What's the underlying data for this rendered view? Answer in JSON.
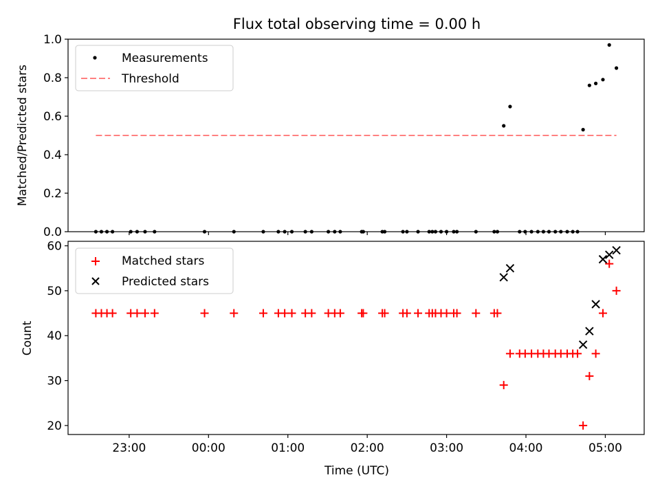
{
  "chart_data": [
    {
      "type": "scatter",
      "title": "Flux total observing time = 0.00 h",
      "xlabel": "",
      "ylabel": "Matched/Predicted stars",
      "ylim": [
        0,
        1.0
      ],
      "yticks": [
        0.0,
        0.2,
        0.4,
        0.6,
        0.8,
        1.0
      ],
      "ytick_labels": [
        "0.0",
        "0.2",
        "0.4",
        "0.6",
        "0.8",
        "1.0"
      ],
      "xlim_hours": [
        -1.77,
        5.49
      ],
      "legend": {
        "placement": "upper-left",
        "entries": [
          "Measurements",
          "Threshold"
        ]
      },
      "series": [
        {
          "name": "Measurements",
          "marker": "dot",
          "color": "#000000",
          "x_hours": [
            -1.42,
            -1.35,
            -1.28,
            -1.21,
            -0.98,
            -0.9,
            -0.8,
            -0.68,
            -0.05,
            0.32,
            0.69,
            0.88,
            0.96,
            1.05,
            1.22,
            1.3,
            1.51,
            1.59,
            1.66,
            1.93,
            1.95,
            2.19,
            2.22,
            2.45,
            2.5,
            2.64,
            2.78,
            2.82,
            2.86,
            2.93,
            3.0,
            3.09,
            3.13,
            3.37,
            3.6,
            3.64,
            3.72,
            3.8,
            3.92,
            3.99,
            4.07,
            4.15,
            4.22,
            4.29,
            4.37,
            4.44,
            4.52,
            4.59,
            4.65,
            4.72,
            4.8,
            4.88,
            4.97,
            5.05,
            5.14
          ],
          "y": [
            0,
            0,
            0,
            0,
            0,
            0,
            0,
            0,
            0,
            0,
            0,
            0,
            0,
            0,
            0,
            0,
            0,
            0,
            0,
            0,
            0,
            0,
            0,
            0,
            0,
            0,
            0,
            0,
            0,
            0,
            0,
            0,
            0,
            0,
            0,
            0,
            0.55,
            0.65,
            0,
            0,
            0,
            0,
            0,
            0,
            0,
            0,
            0,
            0,
            0,
            0.53,
            0.76,
            0.77,
            0.79,
            0.97,
            0.85
          ]
        },
        {
          "name": "Threshold",
          "style": "dashed",
          "color": "#ff8080",
          "x_hours": [
            -1.42,
            5.14
          ],
          "y": [
            0.5,
            0.5
          ]
        }
      ]
    },
    {
      "type": "scatter",
      "title": "",
      "xlabel": "Time (UTC)",
      "ylabel": "Count",
      "ylim": [
        18,
        61
      ],
      "yticks": [
        20,
        30,
        40,
        50,
        60
      ],
      "ytick_labels": [
        "20",
        "30",
        "40",
        "50",
        "60"
      ],
      "xlim_hours": [
        -1.77,
        5.49
      ],
      "xticks_hours": [
        -1,
        0,
        1,
        2,
        3,
        4,
        5
      ],
      "xtick_labels": [
        "23:00",
        "00:00",
        "01:00",
        "02:00",
        "03:00",
        "04:00",
        "05:00"
      ],
      "legend": {
        "placement": "upper-left",
        "entries": [
          "Matched stars",
          "Predicted stars"
        ]
      },
      "series": [
        {
          "name": "Matched stars",
          "marker": "plus",
          "color": "#ff0000",
          "x_hours": [
            -1.42,
            -1.35,
            -1.28,
            -1.21,
            -0.98,
            -0.9,
            -0.8,
            -0.68,
            -0.05,
            0.32,
            0.69,
            0.88,
            0.96,
            1.05,
            1.22,
            1.3,
            1.51,
            1.59,
            1.66,
            1.93,
            1.95,
            2.19,
            2.22,
            2.45,
            2.5,
            2.64,
            2.78,
            2.82,
            2.86,
            2.93,
            3.0,
            3.09,
            3.13,
            3.37,
            3.6,
            3.64,
            3.72,
            3.8,
            3.92,
            3.99,
            4.07,
            4.15,
            4.22,
            4.29,
            4.37,
            4.44,
            4.52,
            4.59,
            4.65,
            4.72,
            4.8,
            4.88,
            4.97,
            5.05,
            5.14
          ],
          "y": [
            45,
            45,
            45,
            45,
            45,
            45,
            45,
            45,
            45,
            45,
            45,
            45,
            45,
            45,
            45,
            45,
            45,
            45,
            45,
            45,
            45,
            45,
            45,
            45,
            45,
            45,
            45,
            45,
            45,
            45,
            45,
            45,
            45,
            45,
            45,
            45,
            29,
            36,
            36,
            36,
            36,
            36,
            36,
            36,
            36,
            36,
            36,
            36,
            36,
            20,
            31,
            36,
            45,
            56,
            50
          ]
        },
        {
          "name": "Predicted stars",
          "marker": "x",
          "color": "#000000",
          "x_hours": [
            3.72,
            3.8,
            4.72,
            4.8,
            4.88,
            4.97,
            5.05,
            5.14
          ],
          "y": [
            53,
            55,
            38,
            41,
            47,
            57,
            58,
            59
          ]
        }
      ]
    }
  ]
}
